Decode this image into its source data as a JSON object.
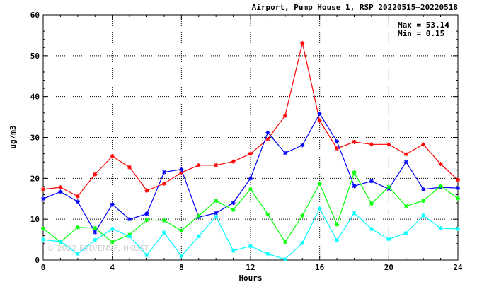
{
  "chart_data": {
    "type": "line",
    "title": "Airport, Pump House 1, RSP 20220515—20220518",
    "xlabel": "Hours",
    "ylabel": "ug/m3",
    "xlim": [
      0,
      24
    ],
    "ylim": [
      0,
      60
    ],
    "xticks": [
      "0",
      "4",
      "8",
      "12",
      "16",
      "20",
      "24"
    ],
    "yticks": [
      "0",
      "10",
      "20",
      "30",
      "40",
      "50",
      "60"
    ],
    "grid": true,
    "annotations": {
      "max_label": "Max = 53.14",
      "min_label": "Min =  0.15",
      "watermark": "© 2022 EPD/ENVF, HKUST"
    },
    "x": [
      0,
      1,
      2,
      3,
      4,
      5,
      6,
      7,
      8,
      9,
      10,
      11,
      12,
      13,
      14,
      15,
      16,
      17,
      18,
      19,
      20,
      21,
      22,
      23,
      24
    ],
    "series": [
      {
        "color": "#ff0000",
        "values": [
          17.3,
          17.8,
          15.6,
          21.0,
          25.4,
          22.7,
          17.0,
          18.7,
          21.4,
          23.2,
          23.2,
          24.1,
          26.0,
          29.6,
          35.3,
          53.1,
          34.1,
          27.3,
          28.9,
          28.3,
          28.3,
          25.9,
          28.3,
          23.5,
          19.6
        ]
      },
      {
        "color": "#0000ff",
        "values": [
          15.0,
          16.7,
          14.3,
          6.8,
          13.6,
          10.0,
          11.3,
          21.5,
          22.2,
          10.5,
          11.5,
          14.0,
          20.0,
          31.2,
          26.2,
          28.1,
          35.8,
          29.0,
          18.1,
          19.3,
          17.4,
          24.0,
          17.3,
          17.8,
          17.6
        ]
      },
      {
        "color": "#00ff00",
        "values": [
          7.7,
          4.4,
          8.0,
          7.8,
          4.4,
          6.2,
          9.8,
          9.7,
          7.2,
          10.8,
          14.5,
          12.3,
          17.3,
          11.2,
          4.4,
          10.9,
          18.7,
          8.7,
          21.4,
          13.8,
          17.9,
          13.2,
          14.5,
          18.1,
          15.1
        ]
      },
      {
        "color": "#00ffff",
        "values": [
          5.0,
          4.5,
          1.5,
          4.9,
          7.6,
          5.8,
          1.2,
          6.7,
          1.0,
          5.8,
          10.6,
          2.3,
          3.4,
          1.5,
          0.2,
          4.2,
          12.6,
          4.8,
          11.5,
          7.6,
          5.1,
          6.6,
          10.9,
          7.8,
          7.6
        ]
      }
    ]
  }
}
